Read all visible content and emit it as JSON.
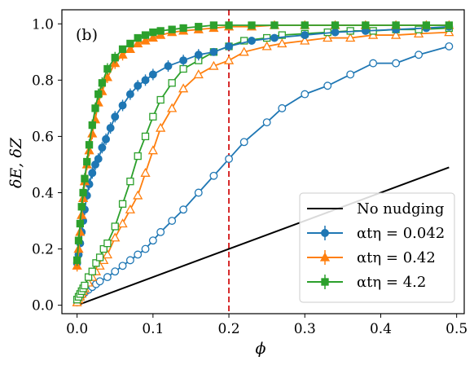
{
  "chart_data": {
    "type": "line",
    "panel_label": "(b)",
    "xlabel": "ϕ",
    "ylabel": "δE, δZ",
    "xlim": [
      -0.02,
      0.51
    ],
    "ylim": [
      -0.03,
      1.05
    ],
    "xticks": [
      0.0,
      0.1,
      0.2,
      0.3,
      0.4,
      0.5
    ],
    "xtick_labels": [
      "0.0",
      "0.1",
      "0.2",
      "0.3",
      "0.4",
      "0.5"
    ],
    "yticks": [
      0.0,
      0.2,
      0.4,
      0.6,
      0.8,
      1.0
    ],
    "ytick_labels": [
      "0.0",
      "0.2",
      "0.4",
      "0.6",
      "0.8",
      "1.0"
    ],
    "vline": {
      "x": 0.2,
      "color": "#d62728",
      "style": "dashed"
    },
    "legend_position": "lower-right",
    "legend": [
      {
        "label": "No nudging",
        "color": "#000000",
        "marker": "none"
      },
      {
        "label": "αtη = 0.042",
        "color": "#1f77b4",
        "marker": "circle"
      },
      {
        "label": "αtη = 0.42",
        "color": "#ff7f0e",
        "marker": "triangle"
      },
      {
        "label": "αtη = 4.2",
        "color": "#2ca02c",
        "marker": "square"
      }
    ],
    "series": [
      {
        "id": "no-nudging",
        "color": "#000000",
        "marker": "none",
        "x": [
          0.0,
          0.49
        ],
        "y": [
          0.0,
          0.49
        ]
      },
      {
        "id": "blue-filled",
        "color": "#1f77b4",
        "marker": "circle",
        "filled": true,
        "x": [
          0.0,
          0.002,
          0.004,
          0.006,
          0.008,
          0.01,
          0.013,
          0.016,
          0.02,
          0.024,
          0.028,
          0.033,
          0.038,
          0.044,
          0.05,
          0.06,
          0.07,
          0.08,
          0.09,
          0.1,
          0.12,
          0.14,
          0.16,
          0.18,
          0.2,
          0.23,
          0.26,
          0.3,
          0.34,
          0.38,
          0.42,
          0.46,
          0.49
        ],
        "y": [
          0.15,
          0.18,
          0.22,
          0.26,
          0.3,
          0.34,
          0.39,
          0.43,
          0.47,
          0.5,
          0.52,
          0.56,
          0.59,
          0.63,
          0.67,
          0.71,
          0.75,
          0.78,
          0.8,
          0.82,
          0.85,
          0.87,
          0.89,
          0.9,
          0.92,
          0.94,
          0.95,
          0.96,
          0.97,
          0.975,
          0.98,
          0.985,
          0.99
        ]
      },
      {
        "id": "blue-open",
        "color": "#1f77b4",
        "marker": "circle",
        "filled": false,
        "x": [
          0.0,
          0.002,
          0.004,
          0.006,
          0.008,
          0.01,
          0.015,
          0.02,
          0.025,
          0.03,
          0.04,
          0.05,
          0.06,
          0.07,
          0.08,
          0.09,
          0.1,
          0.11,
          0.125,
          0.14,
          0.16,
          0.18,
          0.2,
          0.22,
          0.25,
          0.27,
          0.3,
          0.33,
          0.36,
          0.39,
          0.42,
          0.45,
          0.49
        ],
        "y": [
          0.01,
          0.02,
          0.03,
          0.035,
          0.04,
          0.045,
          0.055,
          0.065,
          0.075,
          0.085,
          0.1,
          0.12,
          0.14,
          0.16,
          0.18,
          0.2,
          0.23,
          0.26,
          0.3,
          0.34,
          0.4,
          0.46,
          0.52,
          0.58,
          0.65,
          0.7,
          0.75,
          0.78,
          0.82,
          0.86,
          0.86,
          0.89,
          0.92
        ]
      },
      {
        "id": "orange-filled",
        "color": "#ff7f0e",
        "marker": "triangle",
        "filled": true,
        "x": [
          0.0,
          0.002,
          0.004,
          0.006,
          0.008,
          0.01,
          0.013,
          0.016,
          0.02,
          0.024,
          0.028,
          0.033,
          0.04,
          0.05,
          0.06,
          0.07,
          0.08,
          0.09,
          0.1,
          0.11,
          0.125,
          0.14,
          0.16,
          0.18,
          0.2,
          0.23,
          0.26,
          0.3,
          0.34,
          0.38,
          0.42,
          0.46,
          0.49
        ],
        "y": [
          0.14,
          0.2,
          0.26,
          0.32,
          0.38,
          0.44,
          0.5,
          0.55,
          0.61,
          0.66,
          0.72,
          0.76,
          0.81,
          0.86,
          0.89,
          0.91,
          0.93,
          0.94,
          0.95,
          0.96,
          0.97,
          0.975,
          0.98,
          0.985,
          0.99,
          0.99,
          0.995,
          0.995,
          0.995,
          0.995,
          0.995,
          0.995,
          0.995
        ]
      },
      {
        "id": "orange-open",
        "color": "#ff7f0e",
        "marker": "triangle",
        "filled": false,
        "x": [
          0.0,
          0.002,
          0.004,
          0.006,
          0.008,
          0.01,
          0.015,
          0.02,
          0.025,
          0.03,
          0.035,
          0.04,
          0.05,
          0.06,
          0.07,
          0.08,
          0.09,
          0.1,
          0.11,
          0.125,
          0.14,
          0.16,
          0.18,
          0.2,
          0.22,
          0.25,
          0.27,
          0.3,
          0.33,
          0.36,
          0.39,
          0.42,
          0.45,
          0.49
        ],
        "y": [
          0.01,
          0.02,
          0.03,
          0.04,
          0.05,
          0.06,
          0.08,
          0.1,
          0.12,
          0.14,
          0.16,
          0.18,
          0.24,
          0.29,
          0.34,
          0.39,
          0.47,
          0.55,
          0.63,
          0.7,
          0.77,
          0.82,
          0.85,
          0.87,
          0.9,
          0.92,
          0.93,
          0.94,
          0.95,
          0.95,
          0.96,
          0.96,
          0.965,
          0.97
        ]
      },
      {
        "id": "green-filled",
        "color": "#2ca02c",
        "marker": "square",
        "filled": true,
        "x": [
          0.0,
          0.002,
          0.004,
          0.006,
          0.008,
          0.01,
          0.013,
          0.016,
          0.02,
          0.024,
          0.028,
          0.033,
          0.04,
          0.05,
          0.06,
          0.07,
          0.08,
          0.09,
          0.1,
          0.11,
          0.125,
          0.14,
          0.16,
          0.18,
          0.2,
          0.23,
          0.26,
          0.3,
          0.34,
          0.38,
          0.42,
          0.46,
          0.49
        ],
        "y": [
          0.16,
          0.23,
          0.29,
          0.35,
          0.4,
          0.45,
          0.51,
          0.57,
          0.64,
          0.7,
          0.75,
          0.79,
          0.84,
          0.88,
          0.91,
          0.93,
          0.95,
          0.96,
          0.97,
          0.975,
          0.98,
          0.985,
          0.99,
          0.995,
          0.995,
          0.995,
          0.995,
          0.995,
          0.995,
          0.995,
          0.995,
          0.995,
          0.995
        ]
      },
      {
        "id": "green-open",
        "color": "#2ca02c",
        "marker": "square",
        "filled": false,
        "x": [
          0.0,
          0.002,
          0.004,
          0.006,
          0.008,
          0.01,
          0.015,
          0.02,
          0.025,
          0.03,
          0.035,
          0.04,
          0.05,
          0.06,
          0.07,
          0.08,
          0.09,
          0.1,
          0.11,
          0.125,
          0.14,
          0.16,
          0.18,
          0.2,
          0.22,
          0.25,
          0.27,
          0.3,
          0.33,
          0.36,
          0.39,
          0.42,
          0.45,
          0.49
        ],
        "y": [
          0.02,
          0.03,
          0.04,
          0.05,
          0.06,
          0.07,
          0.1,
          0.12,
          0.15,
          0.17,
          0.2,
          0.22,
          0.28,
          0.36,
          0.44,
          0.53,
          0.6,
          0.67,
          0.73,
          0.79,
          0.84,
          0.87,
          0.9,
          0.92,
          0.94,
          0.95,
          0.96,
          0.965,
          0.97,
          0.975,
          0.975,
          0.98,
          0.98,
          0.985
        ]
      }
    ]
  }
}
